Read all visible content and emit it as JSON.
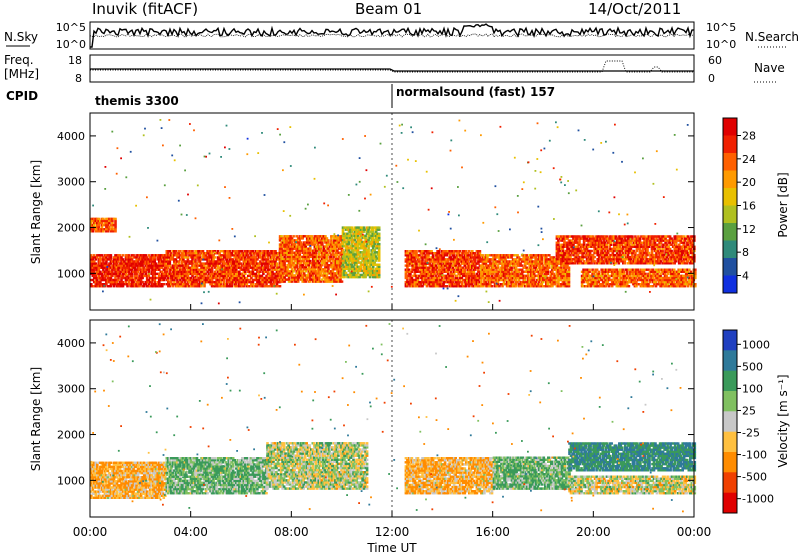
{
  "header": {
    "station": "Inuvik (fitACF)",
    "beam": "Beam 01",
    "date": "14/Oct/2011"
  },
  "labels": {
    "nsky": "N.Sky",
    "nsearch": "N.Search",
    "freq_top": "Freq.",
    "freq_unit": "[MHz]",
    "nave": "Nave",
    "cpid": "CPID",
    "y_label": "Slant Range [km]",
    "x_label": "Time UT"
  },
  "noise_panel": {
    "left_ticks": [
      "10^5",
      "10^0"
    ],
    "right_ticks": [
      "10^5",
      "10^0"
    ]
  },
  "freq_panel": {
    "left_ticks": [
      "18",
      "8"
    ],
    "right_ticks": [
      "60",
      "0"
    ]
  },
  "cpid_panel": {
    "segments": [
      {
        "name": "themis 3300",
        "start_hour": 0
      },
      {
        "name": "normalsound (fast) 157",
        "start_hour": 12
      }
    ]
  },
  "time_axis": {
    "ticks": [
      "00:00",
      "04:00",
      "08:00",
      "12:00",
      "16:00",
      "20:00",
      "00:00"
    ]
  },
  "power_colorbar": {
    "title": "Power [dB]",
    "ticks": [
      "28",
      "24",
      "20",
      "16",
      "12",
      "8",
      "4"
    ],
    "colors": [
      "#e00000",
      "#f02000",
      "#ff6000",
      "#ff9a00",
      "#e8c000",
      "#b0c020",
      "#5aa040",
      "#2f8a7a",
      "#2050a0",
      "#1030e0"
    ]
  },
  "velocity_colorbar": {
    "title": "Velocity [m s⁻¹]",
    "ticks": [
      "1000",
      "500",
      "100",
      "25",
      "-25",
      "-100",
      "-500",
      "-1000"
    ],
    "colors": [
      "#2040c0",
      "#2f7a9a",
      "#3a9a5a",
      "#80c060",
      "#c8c8c8",
      "#ffc040",
      "#ff8c00",
      "#f04000",
      "#e00000"
    ]
  },
  "chart_data": [
    {
      "type": "heatmap",
      "panel": "power",
      "ylabel": "Slant Range [km]",
      "xlabel": "Time UT",
      "xlim": [
        0,
        24
      ],
      "ylim": [
        200,
        4500
      ],
      "yticks": [
        1000,
        2000,
        3000,
        4000
      ],
      "colorbar": "Power [dB]",
      "bands": [
        {
          "start_hour": 0.0,
          "end_hour": 3.0,
          "range_low": 700,
          "range_high": 1400,
          "value": 28
        },
        {
          "start_hour": 3.0,
          "end_hour": 7.5,
          "range_low": 700,
          "range_high": 1500,
          "value": 26
        },
        {
          "start_hour": 7.5,
          "end_hour": 10.0,
          "range_low": 800,
          "range_high": 1800,
          "value": 24
        },
        {
          "start_hour": 10.0,
          "end_hour": 11.5,
          "range_low": 900,
          "range_high": 2000,
          "value": 16
        },
        {
          "start_hour": 12.5,
          "end_hour": 15.5,
          "range_low": 700,
          "range_high": 1500,
          "value": 26
        },
        {
          "start_hour": 15.5,
          "end_hour": 19.0,
          "range_low": 700,
          "range_high": 1400,
          "value": 24
        },
        {
          "start_hour": 18.5,
          "end_hour": 24.0,
          "range_low": 1200,
          "range_high": 1800,
          "value": 26
        },
        {
          "start_hour": 19.5,
          "end_hour": 24.0,
          "range_low": 700,
          "range_high": 1100,
          "value": 24
        },
        {
          "start_hour": 0.0,
          "end_hour": 1.0,
          "range_low": 1900,
          "range_high": 2200,
          "value": 24
        }
      ]
    },
    {
      "type": "heatmap",
      "panel": "velocity",
      "ylabel": "Slant Range [km]",
      "xlabel": "Time UT",
      "xlim": [
        0,
        24
      ],
      "ylim": [
        200,
        4500
      ],
      "yticks": [
        1000,
        2000,
        3000,
        4000
      ],
      "colorbar": "Velocity [m s⁻¹]",
      "bands": [
        {
          "start_hour": 0.0,
          "end_hour": 3.0,
          "range_low": 600,
          "range_high": 1400,
          "value": -100
        },
        {
          "start_hour": 3.0,
          "end_hour": 7.0,
          "range_low": 700,
          "range_high": 1500,
          "value": 100
        },
        {
          "start_hour": 7.0,
          "end_hour": 11.0,
          "range_low": 800,
          "range_high": 1800,
          "value": 25
        },
        {
          "start_hour": 12.5,
          "end_hour": 16.0,
          "range_low": 700,
          "range_high": 1500,
          "value": -100
        },
        {
          "start_hour": 16.0,
          "end_hour": 19.0,
          "range_low": 800,
          "range_high": 1500,
          "value": 100
        },
        {
          "start_hour": 19.0,
          "end_hour": 24.0,
          "range_low": 700,
          "range_high": 1100,
          "value": 0
        },
        {
          "start_hour": 19.0,
          "end_hour": 24.0,
          "range_low": 1200,
          "range_high": 1800,
          "value": 500
        }
      ]
    }
  ]
}
